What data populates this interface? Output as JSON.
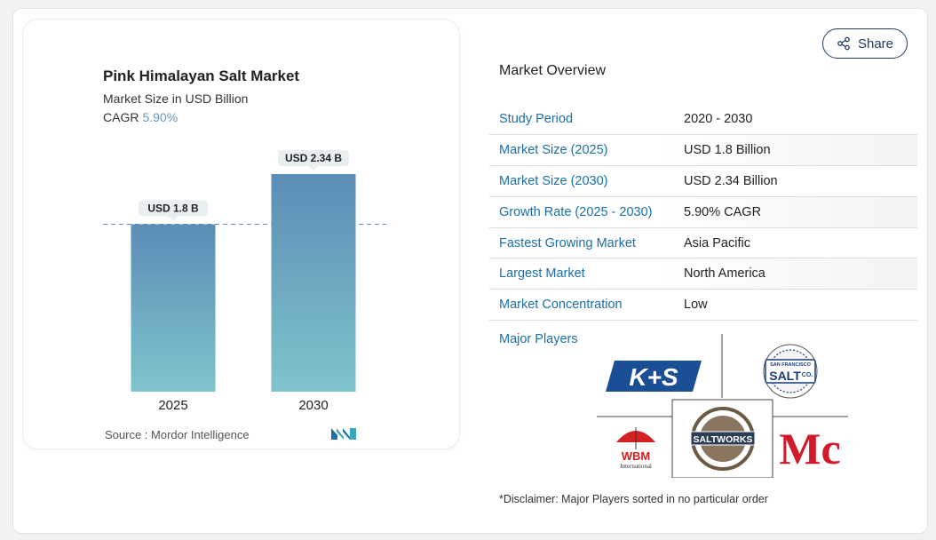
{
  "chart_data": {
    "type": "bar",
    "title": "Pink Himalayan Salt Market",
    "subtitle": "Market Size in USD Billion",
    "cagr_label": "CAGR",
    "cagr_value": "5.90%",
    "categories": [
      "2025",
      "2030"
    ],
    "values": [
      1.8,
      2.34
    ],
    "value_labels": [
      "USD 1.8 B",
      "USD 2.34 B"
    ],
    "ylim": [
      0,
      2.34
    ],
    "grid": false,
    "reference_line_at": 1.8,
    "colors": {
      "bar_top": "#5b8db6",
      "bar_bottom": "#7fc4cc",
      "ref_line": "#5b8db6"
    }
  },
  "source": {
    "label": "Source :",
    "name": "Mordor Intelligence"
  },
  "share": {
    "label": "Share"
  },
  "overview": {
    "title": "Market Overview",
    "rows": [
      {
        "key": "Study Period",
        "value": "2020 - 2030"
      },
      {
        "key": "Market Size (2025)",
        "value": "USD 1.8 Billion"
      },
      {
        "key": "Market Size (2030)",
        "value": "USD 2.34 Billion"
      },
      {
        "key": "Growth Rate (2025 - 2030)",
        "value": "5.90% CAGR"
      },
      {
        "key": "Fastest Growing Market",
        "value": "Asia Pacific"
      },
      {
        "key": "Largest Market",
        "value": "North America"
      },
      {
        "key": "Market Concentration",
        "value": "Low"
      }
    ]
  },
  "players": {
    "label": "Major Players",
    "logos": {
      "ks": "K+S",
      "sf_top": "SAN FRANCISCO",
      "sf_main": "SALT",
      "sf_co": "CO.",
      "wbm": "WBM",
      "wbm_sub": "International",
      "saltworks": "SALTWORKS",
      "mc": "Mc"
    }
  },
  "disclaimer": "*Disclaimer: Major Players sorted in no particular order"
}
